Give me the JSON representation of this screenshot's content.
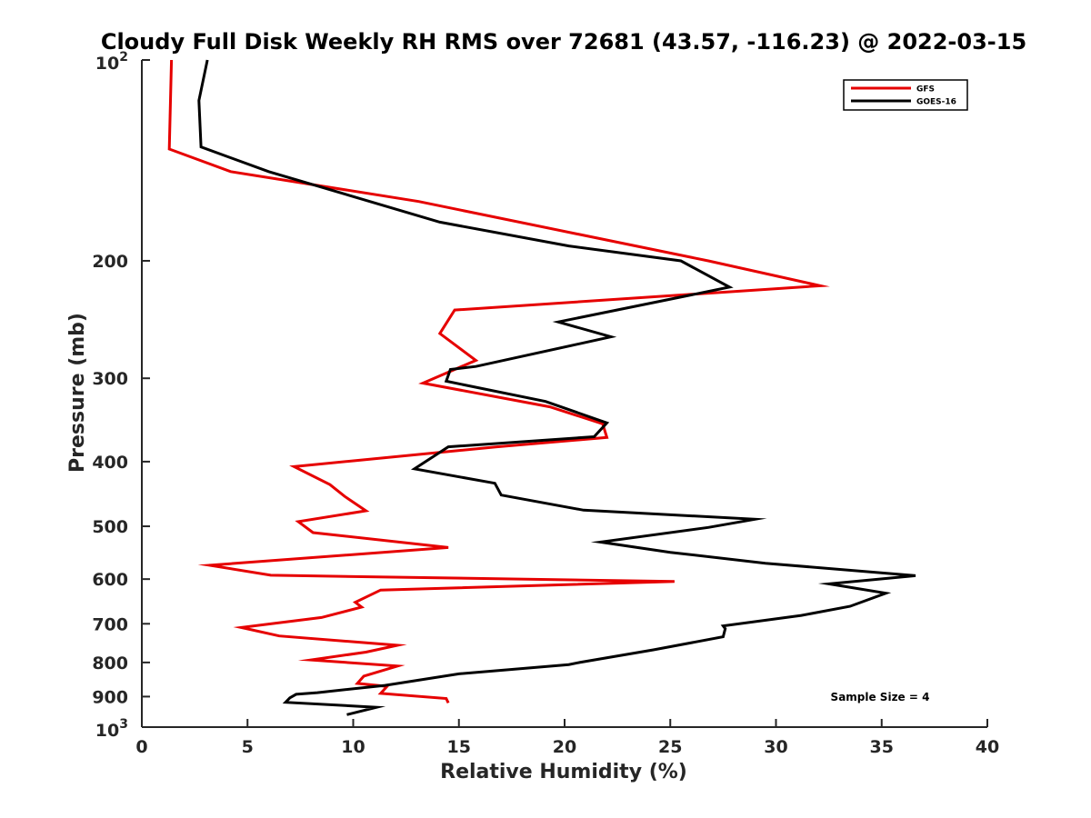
{
  "chart_data": {
    "type": "line",
    "title": "Cloudy Full Disk Weekly RH RMS over 72681 (43.57, -116.23) @ 2022-03-15",
    "xlabel": "Relative Humidity (%)",
    "ylabel": "Pressure (mb)",
    "xlim": [
      0,
      40
    ],
    "ylim": [
      100,
      1000
    ],
    "y_scale": "log",
    "y_reversed": true,
    "grid": false,
    "x_ticks": [
      "0",
      "5",
      "10",
      "15",
      "20",
      "25",
      "30",
      "35",
      "40"
    ],
    "y_ticks": [
      {
        "value": 100,
        "base": "10",
        "exp": "2"
      },
      {
        "value": 200,
        "label": "200"
      },
      {
        "value": 300,
        "label": "300"
      },
      {
        "value": 400,
        "label": "400"
      },
      {
        "value": 500,
        "label": "500"
      },
      {
        "value": 600,
        "label": "600"
      },
      {
        "value": 700,
        "label": "700"
      },
      {
        "value": 800,
        "label": "800"
      },
      {
        "value": 900,
        "label": "900"
      },
      {
        "value": 1000,
        "base": "10",
        "exp": "3"
      }
    ],
    "legend_position": "top-right",
    "series": [
      {
        "name": "GFS",
        "color": "#e60000",
        "points": [
          [
            1.4,
            100
          ],
          [
            1.3,
            136
          ],
          [
            4.2,
            147
          ],
          [
            13.1,
            163
          ],
          [
            26.8,
            200
          ],
          [
            32.1,
            218
          ],
          [
            14.8,
            237
          ],
          [
            14.1,
            257
          ],
          [
            15.8,
            282
          ],
          [
            13.3,
            305
          ],
          [
            19.3,
            331
          ],
          [
            21.8,
            351
          ],
          [
            22.0,
            368
          ],
          [
            16.8,
            380
          ],
          [
            7.2,
            407
          ],
          [
            8.9,
            433
          ],
          [
            9.6,
            451
          ],
          [
            10.6,
            474
          ],
          [
            7.4,
            492
          ],
          [
            8.1,
            511
          ],
          [
            14.5,
            538
          ],
          [
            3.2,
            572
          ],
          [
            6.1,
            592
          ],
          [
            25.2,
            605
          ],
          [
            11.3,
            623
          ],
          [
            10.1,
            650
          ],
          [
            10.4,
            661
          ],
          [
            8.5,
            685
          ],
          [
            4.7,
            709
          ],
          [
            6.5,
            730
          ],
          [
            12.1,
            754
          ],
          [
            10.6,
            772
          ],
          [
            8.0,
            793
          ],
          [
            12.1,
            810
          ],
          [
            10.5,
            839
          ],
          [
            10.2,
            860
          ],
          [
            11.6,
            869
          ],
          [
            11.3,
            890
          ],
          [
            14.4,
            906
          ],
          [
            14.5,
            920
          ]
        ]
      },
      {
        "name": "GOES-16",
        "color": "#000000",
        "points": [
          [
            3.1,
            100
          ],
          [
            2.7,
            115
          ],
          [
            2.8,
            135
          ],
          [
            6.0,
            147
          ],
          [
            14.1,
            175
          ],
          [
            20.2,
            190
          ],
          [
            25.5,
            200
          ],
          [
            27.8,
            219
          ],
          [
            19.7,
            247
          ],
          [
            22.2,
            260
          ],
          [
            15.8,
            288
          ],
          [
            14.6,
            291
          ],
          [
            14.4,
            303
          ],
          [
            19.1,
            325
          ],
          [
            22.0,
            350
          ],
          [
            21.4,
            367
          ],
          [
            14.5,
            380
          ],
          [
            12.9,
            410
          ],
          [
            16.7,
            431
          ],
          [
            17.0,
            449
          ],
          [
            20.9,
            473
          ],
          [
            29.0,
            488
          ],
          [
            26.8,
            502
          ],
          [
            21.7,
            528
          ],
          [
            25.0,
            547
          ],
          [
            29.5,
            568
          ],
          [
            36.6,
            593
          ],
          [
            32.5,
            610
          ],
          [
            35.2,
            630
          ],
          [
            33.5,
            659
          ],
          [
            31.2,
            680
          ],
          [
            27.5,
            705
          ],
          [
            27.6,
            712
          ],
          [
            27.5,
            732
          ],
          [
            24.2,
            766
          ],
          [
            20.7,
            800
          ],
          [
            20.2,
            806
          ],
          [
            15.0,
            832
          ],
          [
            11.5,
            866
          ],
          [
            8.3,
            888
          ],
          [
            7.3,
            893
          ],
          [
            7.0,
            904
          ],
          [
            6.8,
            918
          ],
          [
            11.1,
            934
          ],
          [
            9.7,
            958
          ]
        ]
      }
    ],
    "annotations": [
      "Sample Size = 4"
    ]
  }
}
